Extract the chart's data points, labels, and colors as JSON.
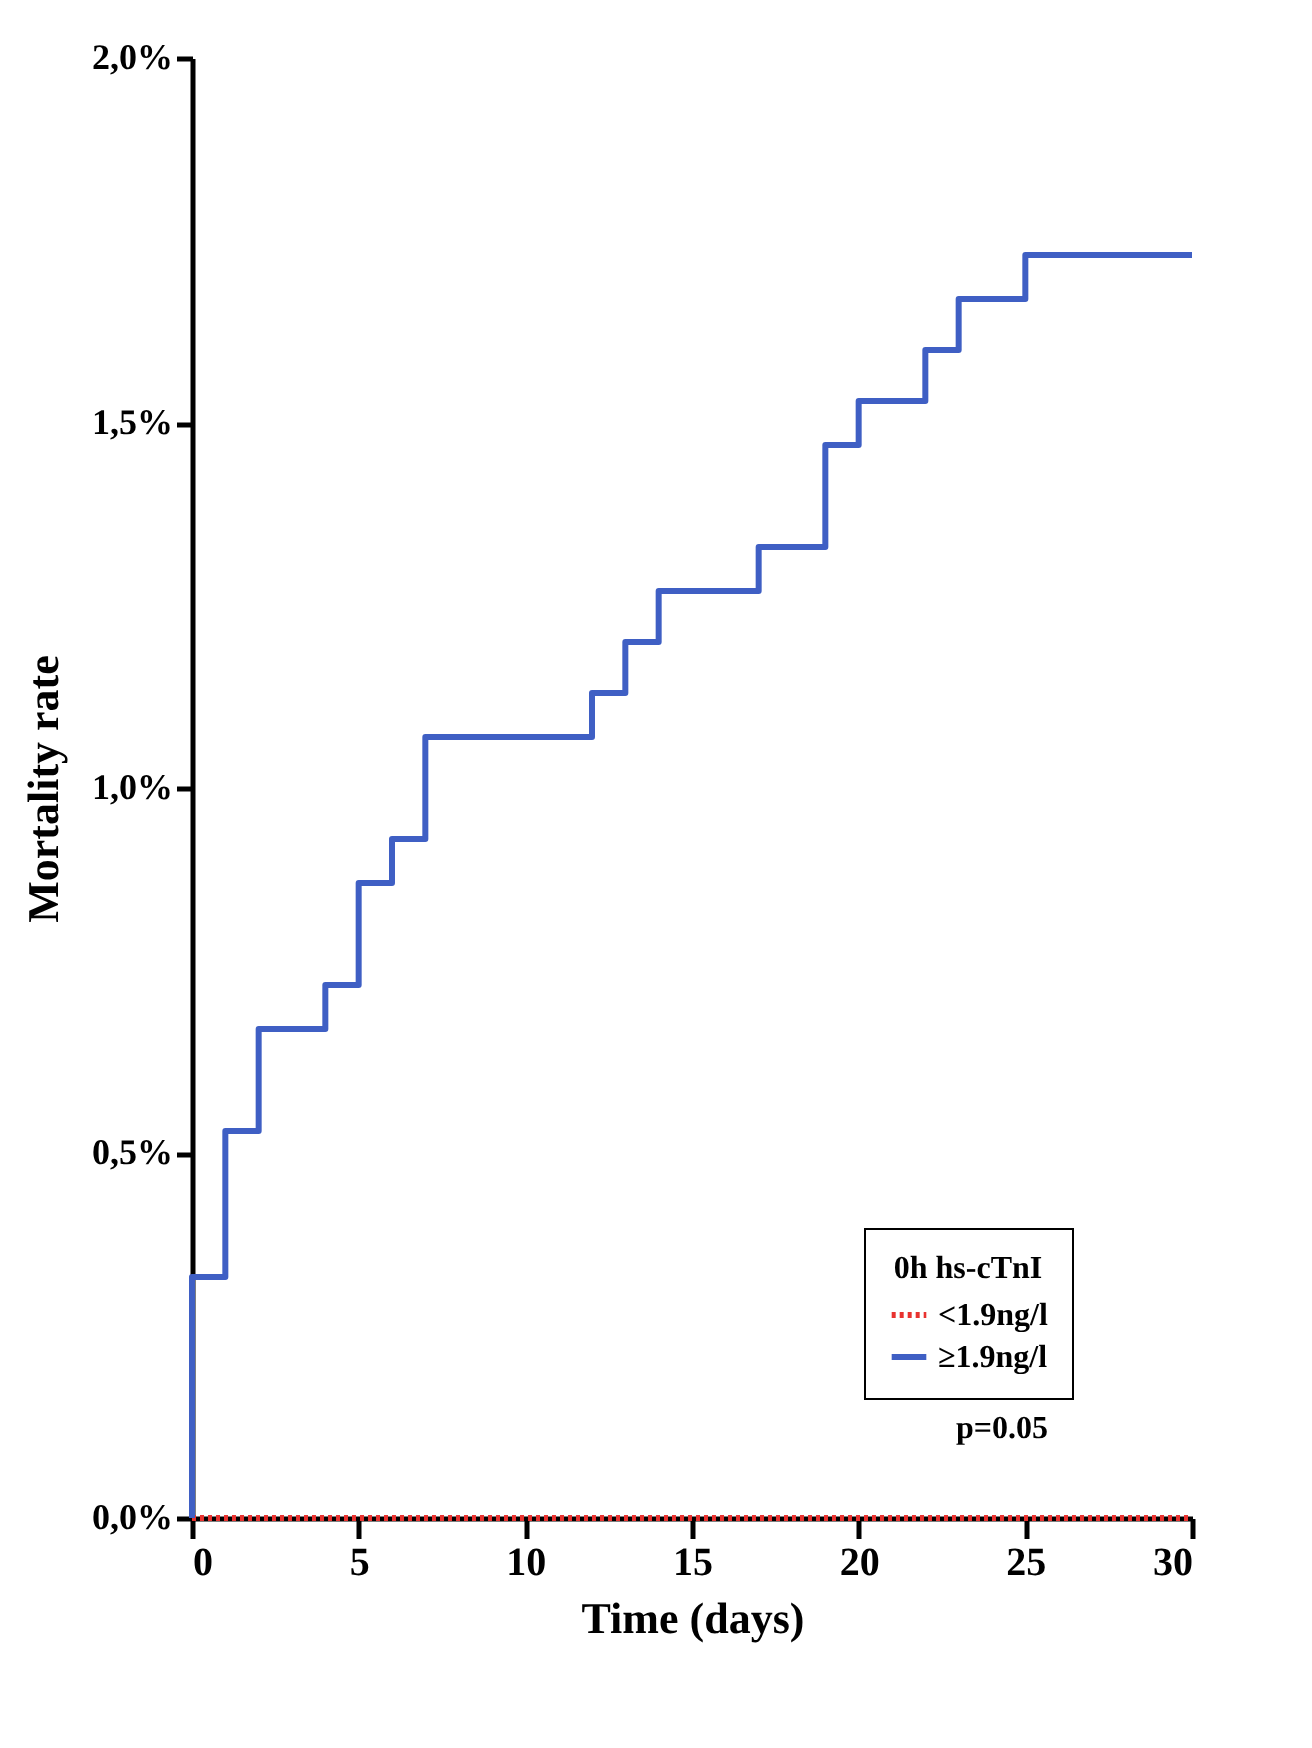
{
  "chart_data": {
    "type": "step",
    "xlabel": "Time (days)",
    "ylabel": "Mortality rate",
    "legend_title": "0h hs-cTnI",
    "xlim": [
      0,
      30
    ],
    "xticks": [
      0,
      5,
      10,
      15,
      20,
      25,
      30
    ],
    "ylim": [
      0,
      2
    ],
    "yticks": [
      {
        "value": 0,
        "label": "0,0%"
      },
      {
        "value": 0.5,
        "label": "0,5%"
      },
      {
        "value": 1,
        "label": "1,0%"
      },
      {
        "value": 1.5,
        "label": "1,5%"
      },
      {
        "value": 2,
        "label": "2,0%"
      }
    ],
    "legend": "bottom right",
    "grid": false,
    "marker": "none",
    "annotations": [
      "p=0.05"
    ],
    "series": [
      {
        "name": "<1.9ng/l",
        "color": "#e8322f",
        "line_style": "dotted",
        "x": [
          0,
          30
        ],
        "values": [
          0,
          0
        ]
      },
      {
        "name": "≥1.9ng/l",
        "color": "#3f5fc4",
        "line_style": "solid",
        "x": [
          0,
          0,
          1,
          2,
          4,
          5,
          6,
          7,
          12,
          13,
          14,
          17,
          19,
          20,
          22,
          23,
          25,
          30
        ],
        "values": [
          0,
          0.33,
          0.53,
          0.67,
          0.73,
          0.87,
          0.93,
          1.07,
          1.13,
          1.2,
          1.27,
          1.33,
          1.47,
          1.53,
          1.6,
          1.67,
          1.73,
          1.73
        ]
      }
    ]
  }
}
